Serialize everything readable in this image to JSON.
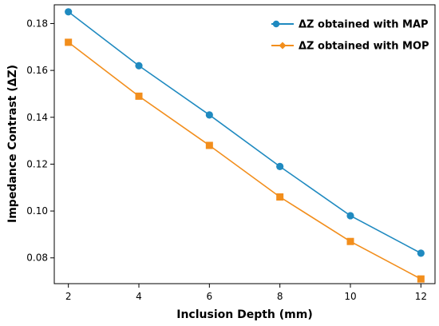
{
  "chart_data": {
    "type": "line",
    "title": "",
    "xlabel": "Inclusion Depth (mm)",
    "ylabel": "Impedance Contrast (ΔZ)",
    "x": [
      2,
      4,
      6,
      8,
      10,
      12
    ],
    "xlim": [
      1.6,
      12.4
    ],
    "ylim": [
      0.069,
      0.188
    ],
    "xticks": [
      "2",
      "4",
      "6",
      "8",
      "10",
      "12"
    ],
    "yticks": [
      "0.08",
      "0.10",
      "0.12",
      "0.14",
      "0.16",
      "0.18"
    ],
    "grid": false,
    "legend_position": "top-right",
    "series": [
      {
        "name": "ΔZ obtained with MAP",
        "values": [
          0.185,
          0.162,
          0.141,
          0.119,
          0.098,
          0.082
        ],
        "color": "#1f8ac0",
        "marker": "circle"
      },
      {
        "name": "ΔZ obtained with MOP",
        "values": [
          0.172,
          0.149,
          0.128,
          0.106,
          0.087,
          0.071
        ],
        "color": "#f28e1c",
        "marker": "square"
      }
    ]
  }
}
